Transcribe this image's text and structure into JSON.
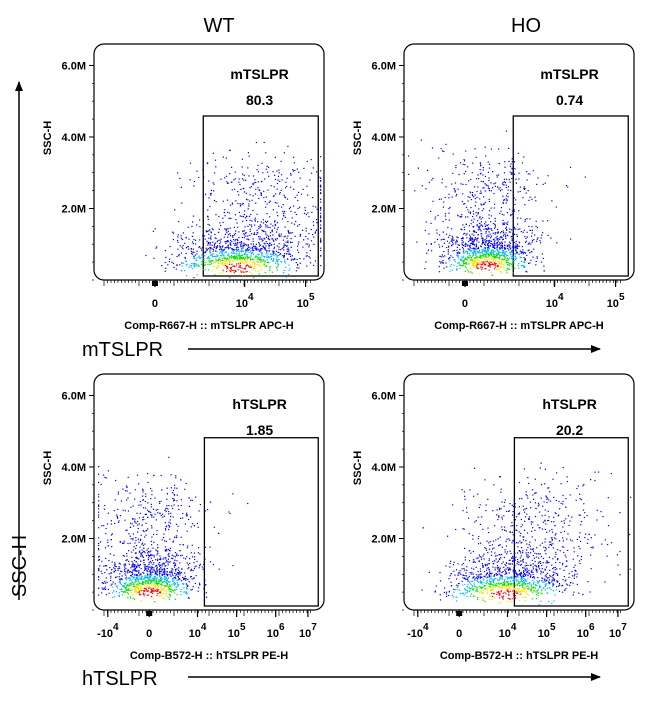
{
  "columns": [
    "WT",
    "HO"
  ],
  "yaxis": {
    "label": "SSC-H"
  },
  "rows": [
    {
      "marker": "mTSLPR"
    },
    {
      "marker": "hTSLPR"
    }
  ],
  "colors": {
    "density": [
      "#0000ff",
      "#00b7ff",
      "#00e000",
      "#ffe000",
      "#ff0000"
    ],
    "gate": "#000000"
  },
  "chart_data": [
    {
      "type": "scatter",
      "title": "WT",
      "panel_label": "mTSLPR",
      "gate_percent": "80.3",
      "xlabel": "Comp-R667-H :: mTSLPR APC-H",
      "ylabel": "SSC-H",
      "x_scale": "biexponential",
      "x_ticks": [
        "0",
        "10^4",
        "10^5"
      ],
      "y_ticks": [
        "2.0M",
        "4.0M",
        "6.0M"
      ],
      "ylim": [
        0,
        6600000
      ],
      "gate_x_min_log": 3.5,
      "gate_y_range": [
        0,
        4800000
      ],
      "population": {
        "center_log": 3.7,
        "center_y": 350000,
        "percent_in_gate": 80.3
      }
    },
    {
      "type": "scatter",
      "title": "HO",
      "panel_label": "mTSLPR",
      "gate_percent": "0.74",
      "xlabel": "Comp-R667-H :: mTSLPR APC-H",
      "ylabel": "SSC-H",
      "x_scale": "biexponential",
      "x_ticks": [
        "0",
        "10^4",
        "10^5"
      ],
      "y_ticks": [
        "2.0M",
        "4.0M",
        "6.0M"
      ],
      "ylim": [
        0,
        6600000
      ],
      "gate_x_min_log": 3.5,
      "gate_y_range": [
        0,
        4800000
      ],
      "population": {
        "center_log": 2.2,
        "center_y": 400000,
        "percent_in_gate": 0.74
      }
    },
    {
      "type": "scatter",
      "title": "WT",
      "panel_label": "hTSLPR",
      "gate_percent": "1.85",
      "xlabel": "Comp-B572-H :: hTSLPR PE-H",
      "ylabel": "SSC-H",
      "x_scale": "biexponential",
      "x_ticks": [
        "-10^4",
        "0",
        "10^4",
        "10^5",
        "10^6",
        "10^7"
      ],
      "y_ticks": [
        "2.0M",
        "4.0M",
        "6.0M"
      ],
      "ylim": [
        0,
        6600000
      ],
      "gate_x_min_log": 4.0,
      "gate_y_range": [
        0,
        4800000
      ],
      "population": {
        "center_log": 0,
        "center_y": 500000,
        "percent_in_gate": 1.85
      }
    },
    {
      "type": "scatter",
      "title": "HO",
      "panel_label": "hTSLPR",
      "gate_percent": "20.2",
      "xlabel": "Comp-B572-H :: hTSLPR PE-H",
      "ylabel": "SSC-H",
      "x_scale": "biexponential",
      "x_ticks": [
        "-10^4",
        "0",
        "10^4",
        "10^5",
        "10^6",
        "10^7"
      ],
      "y_ticks": [
        "2.0M",
        "4.0M",
        "6.0M"
      ],
      "ylim": [
        0,
        6600000
      ],
      "gate_x_min_log": 4.0,
      "gate_y_range": [
        0,
        4800000
      ],
      "population": {
        "center_log": 3.5,
        "center_y": 450000,
        "percent_in_gate": 20.2
      }
    }
  ]
}
